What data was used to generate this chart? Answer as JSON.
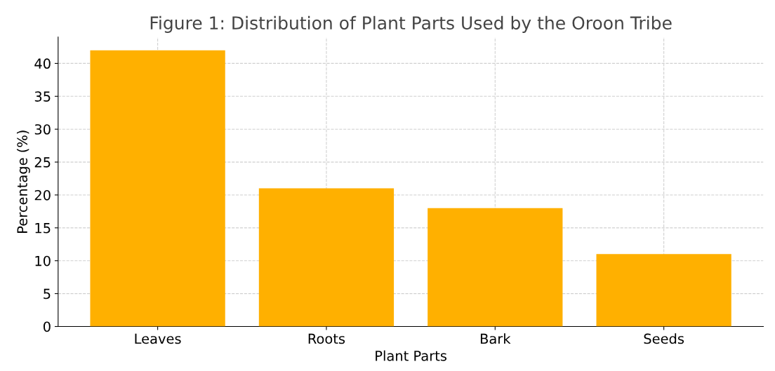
{
  "chart_data": {
    "type": "bar",
    "title": "Figure 1: Distribution of Plant Parts Used by the Oroon Tribe",
    "xlabel": "Plant Parts",
    "ylabel": "Percentage (%)",
    "categories": [
      "Leaves",
      "Roots",
      "Bark",
      "Seeds"
    ],
    "values": [
      42,
      21,
      18,
      11
    ],
    "color": "#ffb000",
    "ylim": [
      0,
      44
    ],
    "yticks": [
      0,
      5,
      10,
      15,
      20,
      25,
      30,
      35,
      40
    ],
    "grid": true
  }
}
